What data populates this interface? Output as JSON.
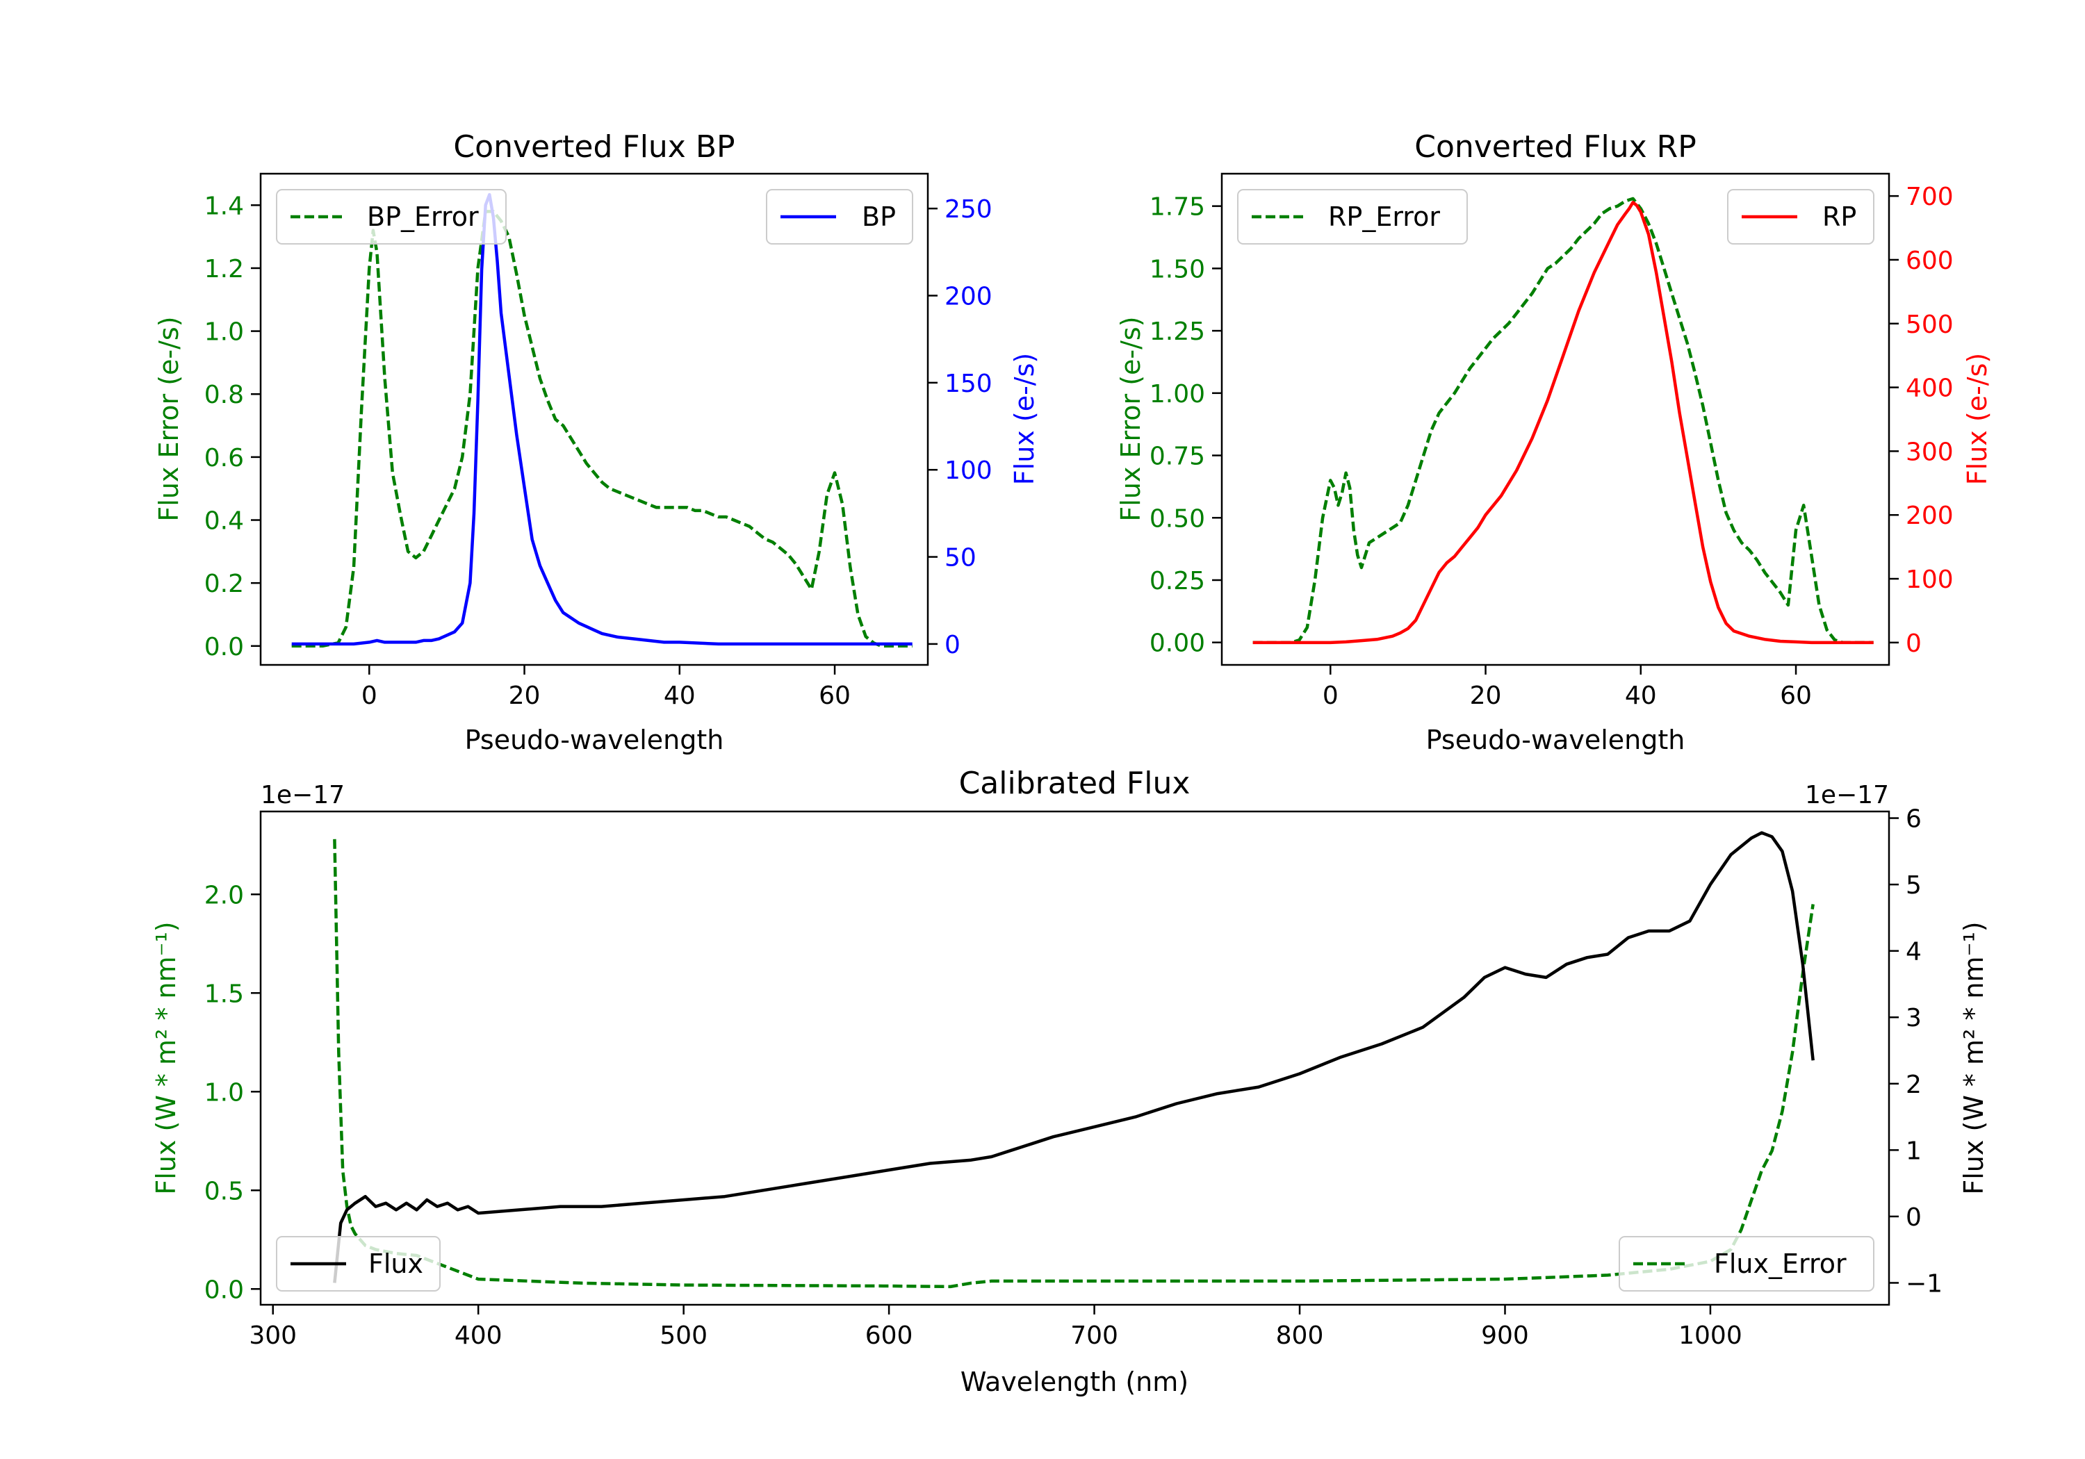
{
  "colors": {
    "green": "#007f00",
    "blue": "#0000ff",
    "red": "#ff0000",
    "black": "#000000"
  },
  "chart_data": [
    {
      "type": "line",
      "title": "Converted Flux BP",
      "xlabel": "Pseudo-wavelength",
      "xlim": [
        -14,
        72
      ],
      "xticks": [
        0,
        20,
        40,
        60
      ],
      "ylabel_left": "Flux Error (e-/s)",
      "ylim_left": [
        -0.06,
        1.5
      ],
      "yticks_left": [
        0.0,
        0.2,
        0.4,
        0.6,
        0.8,
        1.0,
        1.2,
        1.4
      ],
      "ylabel_right": "Flux (e-/s)",
      "ylim_right": [
        -12,
        270
      ],
      "yticks_right": [
        0,
        50,
        100,
        150,
        200,
        250
      ],
      "series": [
        {
          "name": "BP_Error",
          "axis": "left",
          "style": "dashed",
          "color_key": "green",
          "x": [
            -10,
            -6,
            -4,
            -3,
            -2,
            -1,
            0,
            0.5,
            1,
            2,
            3,
            4,
            5,
            6,
            7,
            8,
            9,
            10,
            11,
            12,
            13,
            14,
            15,
            16,
            17,
            18,
            19,
            20,
            21,
            22,
            23,
            24,
            25,
            26,
            27,
            28,
            29,
            30,
            31,
            32,
            33,
            34,
            35,
            36,
            37,
            38,
            39,
            40,
            41,
            42,
            43,
            44,
            45,
            46,
            47,
            48,
            49,
            50,
            51,
            52,
            53,
            54,
            55,
            56,
            57,
            58,
            59,
            60,
            61,
            62,
            63,
            64,
            65,
            66,
            67,
            68,
            69,
            70
          ],
          "y": [
            0,
            0,
            0.01,
            0.06,
            0.25,
            0.75,
            1.2,
            1.32,
            1.25,
            0.85,
            0.55,
            0.42,
            0.3,
            0.28,
            0.3,
            0.35,
            0.4,
            0.45,
            0.5,
            0.6,
            0.8,
            1.2,
            1.38,
            1.38,
            1.35,
            1.3,
            1.18,
            1.05,
            0.95,
            0.85,
            0.78,
            0.72,
            0.7,
            0.66,
            0.62,
            0.58,
            0.55,
            0.52,
            0.5,
            0.49,
            0.48,
            0.47,
            0.46,
            0.45,
            0.44,
            0.44,
            0.44,
            0.44,
            0.44,
            0.43,
            0.43,
            0.42,
            0.41,
            0.41,
            0.4,
            0.39,
            0.38,
            0.36,
            0.34,
            0.33,
            0.31,
            0.29,
            0.26,
            0.22,
            0.18,
            0.3,
            0.48,
            0.55,
            0.45,
            0.25,
            0.1,
            0.03,
            0.01,
            0,
            0,
            0,
            0,
            0
          ]
        },
        {
          "name": "BP",
          "axis": "right",
          "style": "solid",
          "color_key": "blue",
          "x": [
            -10,
            -6,
            -4,
            -2,
            0,
            1,
            2,
            3,
            4,
            5,
            6,
            7,
            8,
            9,
            10,
            11,
            12,
            13,
            13.5,
            14,
            14.5,
            15,
            15.5,
            16,
            16.5,
            17,
            18,
            19,
            20,
            21,
            22,
            23,
            24,
            25,
            26,
            27,
            28,
            29,
            30,
            31,
            32,
            34,
            36,
            38,
            40,
            45,
            50,
            55,
            60,
            65,
            70
          ],
          "y": [
            0,
            0,
            0,
            0,
            1,
            2,
            1,
            1,
            1,
            1,
            1,
            2,
            2,
            3,
            5,
            7,
            12,
            35,
            75,
            140,
            215,
            252,
            258,
            245,
            220,
            190,
            155,
            120,
            90,
            60,
            45,
            35,
            25,
            18,
            15,
            12,
            10,
            8,
            6,
            5,
            4,
            3,
            2,
            1,
            1,
            0,
            0,
            0,
            0,
            0,
            0
          ]
        }
      ],
      "legend": [
        {
          "label": "BP_Error",
          "position": "upper-left"
        },
        {
          "label": "BP",
          "position": "upper-right"
        }
      ]
    },
    {
      "type": "line",
      "title": "Converted Flux RP",
      "xlabel": "Pseudo-wavelength",
      "xlim": [
        -14,
        72
      ],
      "xticks": [
        0,
        20,
        40,
        60
      ],
      "ylabel_left": "Flux Error (e-/s)",
      "ylim_left": [
        -0.09,
        1.88
      ],
      "yticks_left": [
        0.0,
        0.25,
        0.5,
        0.75,
        1.0,
        1.25,
        1.5,
        1.75
      ],
      "ylabel_right": "Flux (e-/s)",
      "ylim_right": [
        -35,
        735
      ],
      "yticks_right": [
        0,
        100,
        200,
        300,
        400,
        500,
        600,
        700
      ],
      "series": [
        {
          "name": "RP_Error",
          "axis": "left",
          "style": "dashed",
          "color_key": "green",
          "x": [
            -10,
            -5,
            -4,
            -3,
            -2,
            -1,
            0,
            0.5,
            1,
            1.5,
            2,
            2.5,
            3,
            3.5,
            4,
            5,
            6,
            7,
            8,
            9,
            10,
            11,
            12,
            13,
            14,
            15,
            16,
            17,
            18,
            19,
            20,
            21,
            22,
            23,
            24,
            25,
            26,
            27,
            28,
            29,
            30,
            31,
            32,
            33,
            34,
            35,
            36,
            37,
            38,
            39,
            40,
            41,
            42,
            43,
            44,
            45,
            46,
            47,
            48,
            49,
            50,
            51,
            52,
            53,
            54,
            55,
            56,
            57,
            58,
            59,
            60,
            61,
            62,
            63,
            64,
            65,
            66,
            67,
            68,
            69,
            70
          ],
          "y": [
            0,
            0,
            0.01,
            0.06,
            0.25,
            0.5,
            0.65,
            0.62,
            0.55,
            0.6,
            0.68,
            0.62,
            0.45,
            0.35,
            0.3,
            0.4,
            0.42,
            0.44,
            0.46,
            0.48,
            0.55,
            0.65,
            0.75,
            0.85,
            0.92,
            0.96,
            1.0,
            1.05,
            1.1,
            1.14,
            1.18,
            1.22,
            1.25,
            1.28,
            1.32,
            1.36,
            1.4,
            1.45,
            1.5,
            1.52,
            1.55,
            1.58,
            1.62,
            1.65,
            1.68,
            1.72,
            1.74,
            1.75,
            1.77,
            1.78,
            1.74,
            1.68,
            1.6,
            1.5,
            1.4,
            1.3,
            1.2,
            1.08,
            0.95,
            0.8,
            0.65,
            0.52,
            0.45,
            0.4,
            0.37,
            0.33,
            0.28,
            0.24,
            0.2,
            0.15,
            0.45,
            0.55,
            0.35,
            0.15,
            0.05,
            0.01,
            0,
            0,
            0,
            0,
            0
          ]
        },
        {
          "name": "RP",
          "axis": "right",
          "style": "solid",
          "color_key": "red",
          "x": [
            -10,
            -5,
            0,
            2,
            4,
            6,
            8,
            9,
            10,
            11,
            12,
            13,
            14,
            15,
            16,
            17,
            18,
            19,
            20,
            22,
            24,
            26,
            28,
            30,
            32,
            34,
            36,
            37,
            38,
            38.5,
            39,
            39.5,
            40,
            41,
            42,
            43,
            44,
            45,
            46,
            47,
            48,
            49,
            50,
            51,
            52,
            54,
            56,
            58,
            60,
            62,
            65,
            70
          ],
          "y": [
            0,
            0,
            0,
            1,
            3,
            5,
            10,
            15,
            22,
            35,
            60,
            85,
            110,
            125,
            135,
            150,
            165,
            180,
            200,
            230,
            270,
            320,
            380,
            450,
            520,
            580,
            630,
            655,
            672,
            680,
            690,
            685,
            675,
            640,
            580,
            510,
            440,
            360,
            290,
            220,
            150,
            95,
            55,
            30,
            18,
            10,
            5,
            2,
            1,
            0,
            0,
            0
          ]
        }
      ],
      "legend": [
        {
          "label": "RP_Error",
          "position": "upper-left"
        },
        {
          "label": "RP",
          "position": "upper-right"
        }
      ]
    },
    {
      "type": "line",
      "title": "Calibrated Flux",
      "xlabel": "Wavelength (nm)",
      "xlim": [
        294,
        1087
      ],
      "xticks": [
        300,
        400,
        500,
        600,
        700,
        800,
        900,
        1000
      ],
      "ylabel_left": "Flux (W * m² * nm⁻¹)",
      "left_multiplier": "1e−17",
      "ylim_left": [
        -0.08,
        2.42
      ],
      "yticks_left": [
        0.0,
        0.5,
        1.0,
        1.5,
        2.0
      ],
      "ylabel_right": "Flux (W * m² * nm⁻¹)",
      "right_multiplier": "1e−17",
      "ylim_right": [
        -1.33,
        6.1
      ],
      "yticks_right": [
        -1,
        0,
        1,
        2,
        3,
        4,
        5,
        6
      ],
      "series": [
        {
          "name": "Flux_Error",
          "axis": "left",
          "style": "dashed",
          "color_key": "green",
          "x": [
            330,
            332,
            334,
            336,
            338,
            340,
            345,
            350,
            360,
            370,
            380,
            390,
            400,
            450,
            500,
            600,
            630,
            640,
            650,
            700,
            800,
            900,
            950,
            980,
            1000,
            1010,
            1015,
            1020,
            1025,
            1030,
            1035,
            1040,
            1045,
            1050
          ],
          "y": [
            2.28,
            1.2,
            0.6,
            0.42,
            0.32,
            0.28,
            0.22,
            0.2,
            0.18,
            0.17,
            0.13,
            0.09,
            0.05,
            0.03,
            0.02,
            0.015,
            0.012,
            0.03,
            0.04,
            0.04,
            0.04,
            0.05,
            0.07,
            0.1,
            0.14,
            0.2,
            0.3,
            0.45,
            0.6,
            0.7,
            0.9,
            1.2,
            1.6,
            1.95
          ]
        },
        {
          "name": "Flux",
          "axis": "right",
          "style": "solid",
          "color_key": "black",
          "x": [
            330,
            333,
            336,
            340,
            345,
            350,
            355,
            360,
            365,
            370,
            375,
            380,
            385,
            390,
            395,
            400,
            420,
            440,
            460,
            480,
            500,
            520,
            540,
            560,
            580,
            600,
            620,
            640,
            650,
            660,
            670,
            680,
            700,
            720,
            740,
            760,
            780,
            800,
            820,
            840,
            860,
            880,
            890,
            900,
            910,
            920,
            930,
            940,
            950,
            960,
            970,
            980,
            990,
            1000,
            1010,
            1020,
            1025,
            1030,
            1035,
            1040,
            1045,
            1050
          ],
          "y": [
            -1.0,
            -0.1,
            0.1,
            0.2,
            0.3,
            0.15,
            0.2,
            0.1,
            0.2,
            0.1,
            0.25,
            0.15,
            0.2,
            0.1,
            0.15,
            0.05,
            0.1,
            0.15,
            0.15,
            0.2,
            0.25,
            0.3,
            0.4,
            0.5,
            0.6,
            0.7,
            0.8,
            0.85,
            0.9,
            1.0,
            1.1,
            1.2,
            1.35,
            1.5,
            1.7,
            1.85,
            1.95,
            2.15,
            2.4,
            2.6,
            2.85,
            3.3,
            3.6,
            3.75,
            3.65,
            3.6,
            3.8,
            3.9,
            3.95,
            4.2,
            4.3,
            4.3,
            4.45,
            5.0,
            5.45,
            5.7,
            5.78,
            5.72,
            5.5,
            4.9,
            3.8,
            2.35
          ]
        }
      ],
      "legend": [
        {
          "label": "Flux",
          "position": "lower-left"
        },
        {
          "label": "Flux_Error",
          "position": "lower-right"
        }
      ]
    }
  ]
}
